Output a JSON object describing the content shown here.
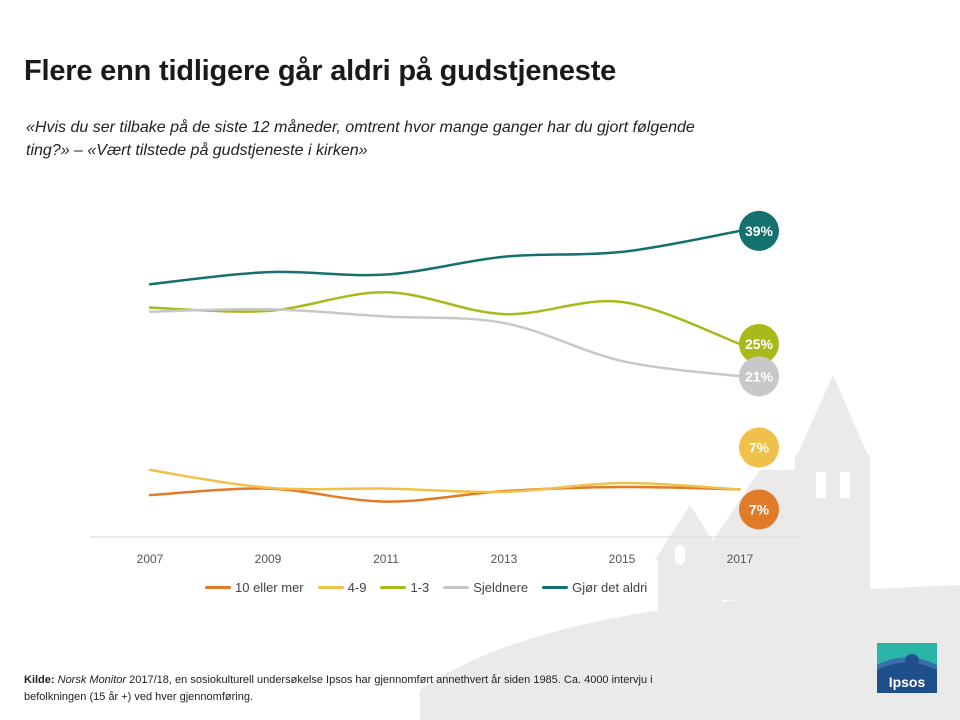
{
  "header": {
    "title": "Flere enn tidligere går aldri på gudstjeneste",
    "subtitle": "«Hvis du ser tilbake på de siste 12 måneder, omtrent hvor mange ganger har du gjort følgende ting?» – «Vært tilstede på gudstjeneste i kirken»"
  },
  "source": {
    "label": "Kilde:",
    "publication": "Norsk Monitor",
    "text": "2017/18, en sosiokulturell undersøkelse Ipsos har gjennomført annethvert år siden 1985. Ca. 4000 intervju i befolkningen (15 år +) ved hver gjennomføring."
  },
  "logo": {
    "text": "Ipsos",
    "colors": {
      "blue": "#1f4f8a",
      "teal": "#2bb5a7"
    }
  },
  "chart_data": {
    "type": "line",
    "title": "Flere enn tidligere går aldri på gudstjeneste",
    "x": [
      "2007",
      "2009",
      "2011",
      "2013",
      "2015",
      "2017"
    ],
    "ylim": [
      0,
      45
    ],
    "grid": false,
    "legend": "bottom",
    "series": [
      {
        "name": "10 eller mer",
        "color": "#e07b2a",
        "values": [
          6.3,
          7.1,
          5.5,
          6.8,
          7.3,
          7
        ]
      },
      {
        "name": "4-9",
        "color": "#f0c04a",
        "values": [
          9.4,
          7.2,
          7.1,
          6.7,
          7.8,
          7
        ]
      },
      {
        "name": "1-3",
        "color": "#a8b91c",
        "values": [
          29.5,
          29.1,
          31.4,
          28.7,
          30.2,
          25
        ]
      },
      {
        "name": "Sjeldnere",
        "color": "#c8c8c8",
        "values": [
          29,
          29.3,
          28.4,
          27.6,
          22.9,
          21
        ]
      },
      {
        "name": "Gjør det aldri",
        "color": "#14716f",
        "values": [
          32.4,
          33.9,
          33.6,
          35.8,
          36.4,
          39
        ]
      }
    ],
    "end_labels": [
      "7%",
      "7%",
      "25%",
      "21%",
      "39%"
    ]
  }
}
